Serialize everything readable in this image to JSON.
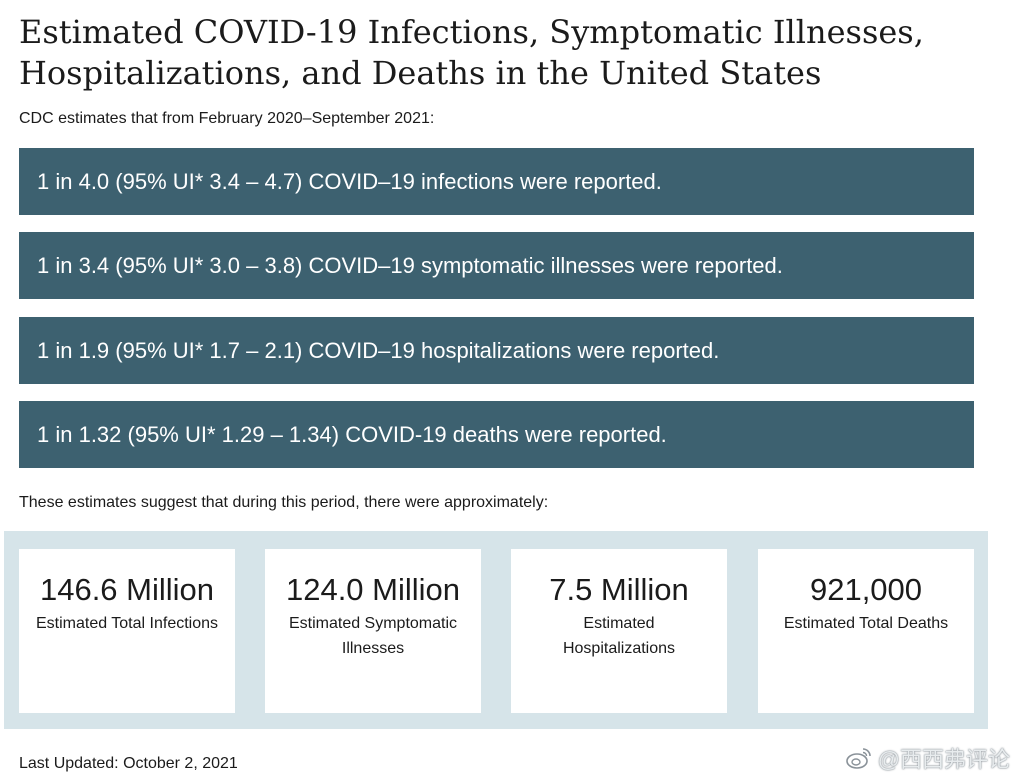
{
  "title": "Estimated COVID-19 Infections, Symptomatic Illnesses, Hospitalizations, and Deaths in the United States",
  "intro": "CDC estimates that from February 2020–September 2021:",
  "banners": [
    "1 in 4.0 (95% UI* 3.4 – 4.7) COVID–19 infections were reported.",
    "1 in 3.4 (95% UI* 3.0 – 3.8) COVID–19 symptomatic illnesses were reported.",
    "1 in 1.9 (95% UI* 1.7 – 2.1) COVID–19 hospitalizations were reported.",
    "1 in 1.32 (95% UI* 1.29 – 1.34) COVID-19 deaths were reported."
  ],
  "summary": "These estimates suggest that during this period, there were approximately:",
  "stats": [
    {
      "value": "146.6 Million",
      "label": "Estimated Total Infections"
    },
    {
      "value": "124.0 Million",
      "label": "Estimated Symptomatic Illnesses"
    },
    {
      "value": "7.5 Million",
      "label": "Estimated Hospitalizations"
    },
    {
      "value": "921,000",
      "label": "Estimated Total Deaths"
    }
  ],
  "last_updated": "Last Updated: October 2, 2021",
  "watermark": {
    "icon": "weibo-icon",
    "text": "@西西弗评论"
  },
  "colors": {
    "banner": "#3d6170",
    "stats_panel": "#d6e4e9"
  }
}
